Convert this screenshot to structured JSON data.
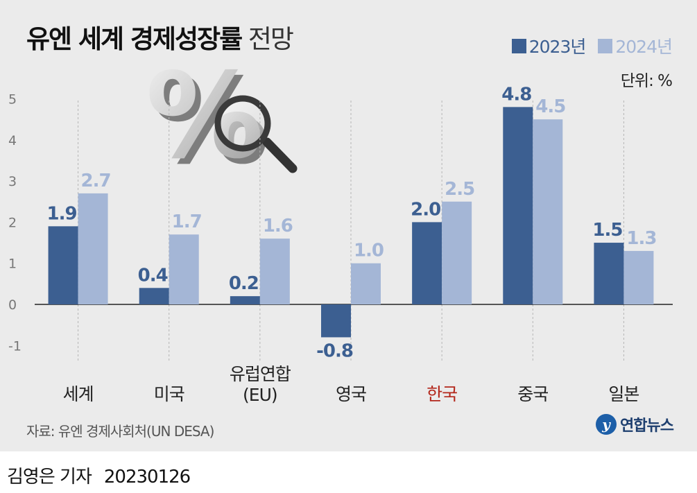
{
  "header": {
    "title_bold": "유엔 세계 경제성장률",
    "title_light": "전망",
    "unit": "단위: %"
  },
  "colors": {
    "y2023": "#3c5f91",
    "y2024": "#a4b6d6"
  },
  "chart_data": {
    "type": "bar",
    "categories": [
      "세계",
      "미국",
      "유럽연합\n(EU)",
      "영국",
      "한국",
      "중국",
      "일본"
    ],
    "highlight_category": "한국",
    "highlight_color": "#b3271b",
    "series": [
      {
        "name": "2023년",
        "values": [
          1.9,
          0.4,
          0.2,
          -0.8,
          2.0,
          4.8,
          1.5
        ],
        "labels": [
          "1.9",
          "0.4",
          "0.2",
          "-0.8",
          "2.0",
          "4.8",
          "1.5"
        ]
      },
      {
        "name": "2024년",
        "values": [
          2.7,
          1.7,
          1.6,
          1.0,
          2.5,
          4.5,
          1.3
        ],
        "labels": [
          "2.7",
          "1.7",
          "1.6",
          "1.0",
          "2.5",
          "4.5",
          "1.3"
        ]
      }
    ],
    "yticks": [
      "5",
      "4",
      "3",
      "2",
      "1",
      "0",
      "-1"
    ],
    "ylim": [
      -1,
      5
    ],
    "legend": "top-right"
  },
  "decoration": {
    "percent_glyph": "%",
    "magnifier": "magnifier-icon"
  },
  "footer": {
    "source": "자료: 유엔 경제사회처(UN DESA)",
    "logo_mark": "y",
    "logo_text": "연합뉴스",
    "reporter": "김영은 기자",
    "date": "20230126"
  }
}
